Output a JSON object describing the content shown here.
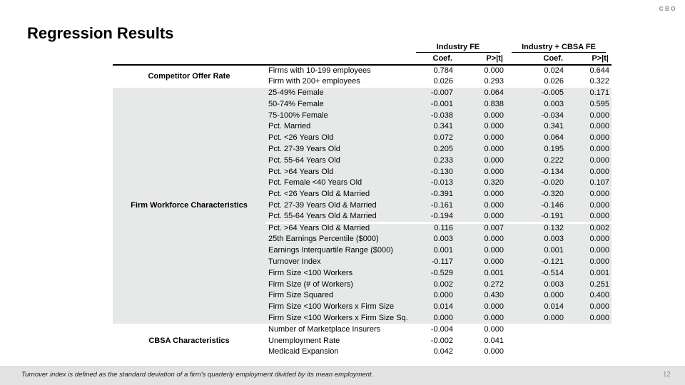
{
  "slide": {
    "logo": "CBO",
    "title": "Regression Results",
    "page_number": "12",
    "footnote": "Turnover index is defined as the standard deviation of a firm's quarterly employment divided by its mean employment."
  },
  "colors": {
    "shaded_section_bg": "#e7e9e9",
    "footer_bg": "#e3e3e3",
    "logo_gray": "#8a8a8a",
    "rule_black": "#000000"
  },
  "table": {
    "group_headers": [
      {
        "label": "Industry FE"
      },
      {
        "label": "Industry + CBSA FE"
      }
    ],
    "sub_headers": [
      "Coef.",
      "P>|t|",
      "Coef.",
      "P>|t|"
    ],
    "sections": [
      {
        "label": "Competitor Offer Rate",
        "shaded": false,
        "blocks": [
          {
            "rows": [
              {
                "variable": "Firms with 10-199 employees",
                "values": [
                  "0.784",
                  "0.000",
                  "0.024",
                  "0.644"
                ]
              },
              {
                "variable": "Firm with 200+ employees",
                "values": [
                  "0.026",
                  "0.293",
                  "0.026",
                  "0.322"
                ]
              }
            ]
          }
        ]
      },
      {
        "label": "Firm Workforce Characteristics",
        "shaded": true,
        "blocks": [
          {
            "rows": [
              {
                "variable": "25-49% Female",
                "values": [
                  "-0.007",
                  "0.064",
                  "-0.005",
                  "0.171"
                ]
              },
              {
                "variable": "50-74% Female",
                "values": [
                  "-0.001",
                  "0.838",
                  "0.003",
                  "0.595"
                ]
              },
              {
                "variable": "75-100% Female",
                "values": [
                  "-0.038",
                  "0.000",
                  "-0.034",
                  "0.000"
                ]
              },
              {
                "variable": "Pct. Married",
                "values": [
                  "0.341",
                  "0.000",
                  "0.341",
                  "0.000"
                ]
              },
              {
                "variable": "Pct. <26 Years Old",
                "values": [
                  "0.072",
                  "0.000",
                  "0.064",
                  "0.000"
                ]
              },
              {
                "variable": "Pct. 27-39 Years Old",
                "values": [
                  "0.205",
                  "0.000",
                  "0.195",
                  "0.000"
                ]
              },
              {
                "variable": "Pct. 55-64 Years Old",
                "values": [
                  "0.233",
                  "0.000",
                  "0.222",
                  "0.000"
                ]
              },
              {
                "variable": "Pct. >64 Years Old",
                "values": [
                  "-0.130",
                  "0.000",
                  "-0.134",
                  "0.000"
                ]
              },
              {
                "variable": "Pct. Female <40 Years Old",
                "values": [
                  "-0.013",
                  "0.320",
                  "-0.020",
                  "0.107"
                ]
              },
              {
                "variable": "Pct. <26 Years Old & Married",
                "values": [
                  "-0.391",
                  "0.000",
                  "-0.320",
                  "0.000"
                ]
              },
              {
                "variable": "Pct. 27-39 Years Old & Married",
                "values": [
                  "-0.161",
                  "0.000",
                  "-0.146",
                  "0.000"
                ]
              },
              {
                "variable": "Pct. 55-64 Years Old & Married",
                "values": [
                  "-0.194",
                  "0.000",
                  "-0.191",
                  "0.000"
                ]
              }
            ]
          },
          {
            "rows": [
              {
                "variable": "Pct. >64 Years Old & Married",
                "values": [
                  "0.116",
                  "0.007",
                  "0.132",
                  "0.002"
                ]
              },
              {
                "variable": "25th Earnings Percentile ($000)",
                "values": [
                  "0.003",
                  "0.000",
                  "0.003",
                  "0.000"
                ]
              },
              {
                "variable": "Earnings Interquartile Range ($000)",
                "values": [
                  "0.001",
                  "0.000",
                  "0.001",
                  "0.000"
                ]
              },
              {
                "variable": "Turnover Index",
                "values": [
                  "-0.117",
                  "0.000",
                  "-0.121",
                  "0.000"
                ]
              },
              {
                "variable": "Firm Size <100 Workers",
                "values": [
                  "-0.529",
                  "0.001",
                  "-0.514",
                  "0.001"
                ]
              },
              {
                "variable": "Firm Size (# of Workers)",
                "values": [
                  "0.002",
                  "0.272",
                  "0.003",
                  "0.251"
                ]
              },
              {
                "variable": "Firm Size Squared",
                "values": [
                  "0.000",
                  "0.430",
                  "0.000",
                  "0.400"
                ]
              },
              {
                "variable": "Firm Size <100 Workers x  Firm Size",
                "values": [
                  "0.014",
                  "0.000",
                  "0.014",
                  "0.000"
                ]
              },
              {
                "variable": "Firm Size <100 Workers x  Firm Size Sq.",
                "values": [
                  "0.000",
                  "0.000",
                  "0.000",
                  "0.000"
                ]
              }
            ]
          }
        ]
      },
      {
        "label": "CBSA Characteristics",
        "shaded": false,
        "blocks": [
          {
            "rows": [
              {
                "variable": "Number of Marketplace Insurers",
                "values": [
                  "-0.004",
                  "0.000",
                  "",
                  ""
                ]
              },
              {
                "variable": "Unemployment Rate",
                "values": [
                  "-0.002",
                  "0.041",
                  "",
                  ""
                ]
              },
              {
                "variable": "Medicaid Expansion",
                "values": [
                  "0.042",
                  "0.000",
                  "",
                  ""
                ]
              }
            ]
          }
        ]
      }
    ]
  }
}
